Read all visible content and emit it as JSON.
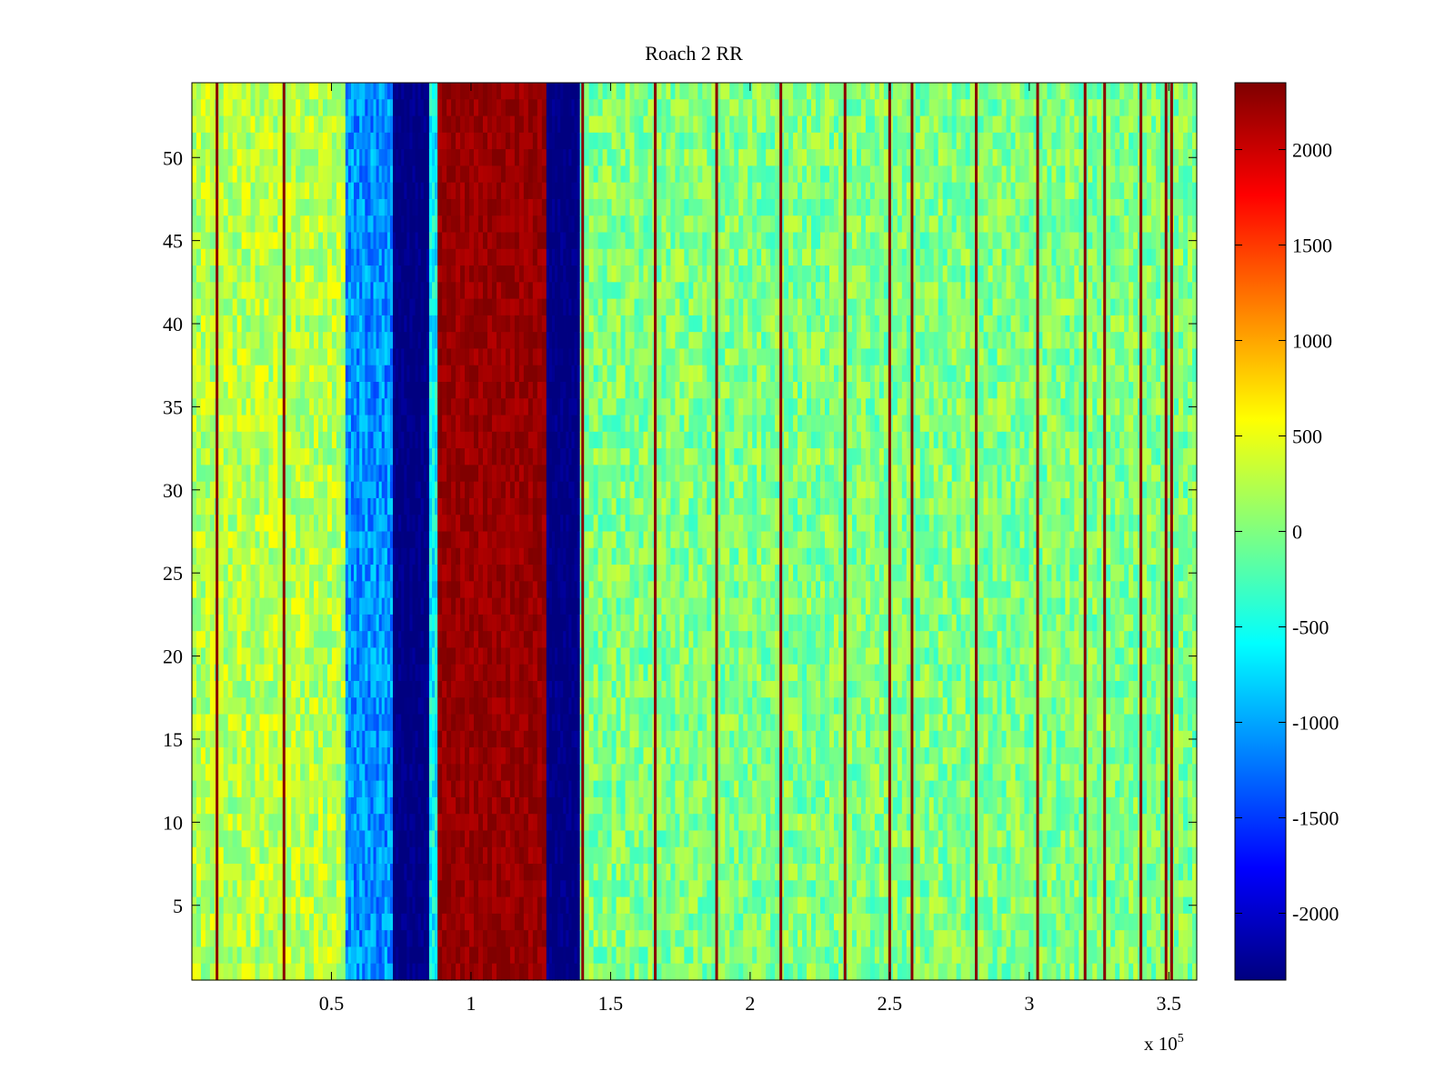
{
  "chart_data": {
    "type": "heatmap",
    "title": "Roach 2 RR",
    "xlabel": "",
    "ylabel": "",
    "x_exponent_label": "x 10",
    "x_exponent_power": "5",
    "xlim": [
      0,
      360000
    ],
    "ylim": [
      0.5,
      54.5
    ],
    "x_ticks": [
      {
        "value": 50000,
        "label": "0.5"
      },
      {
        "value": 100000,
        "label": "1"
      },
      {
        "value": 150000,
        "label": "1.5"
      },
      {
        "value": 200000,
        "label": "2"
      },
      {
        "value": 250000,
        "label": "2.5"
      },
      {
        "value": 300000,
        "label": "3"
      },
      {
        "value": 350000,
        "label": "3.5"
      }
    ],
    "y_ticks": [
      {
        "value": 5,
        "label": "5"
      },
      {
        "value": 10,
        "label": "10"
      },
      {
        "value": 15,
        "label": "15"
      },
      {
        "value": 20,
        "label": "20"
      },
      {
        "value": 25,
        "label": "25"
      },
      {
        "value": 30,
        "label": "30"
      },
      {
        "value": 35,
        "label": "35"
      },
      {
        "value": 40,
        "label": "40"
      },
      {
        "value": 45,
        "label": "45"
      },
      {
        "value": 50,
        "label": "50"
      }
    ],
    "colormap": "jet",
    "clim": [
      -2350,
      2350
    ],
    "colorbar_ticks": [
      {
        "value": 2000,
        "label": "2000"
      },
      {
        "value": 1500,
        "label": "1500"
      },
      {
        "value": 1000,
        "label": "1000"
      },
      {
        "value": 500,
        "label": "500"
      },
      {
        "value": 0,
        "label": "0"
      },
      {
        "value": -500,
        "label": "-500"
      },
      {
        "value": -1000,
        "label": "-1000"
      },
      {
        "value": -1500,
        "label": "-1500"
      },
      {
        "value": -2000,
        "label": "-2000"
      }
    ],
    "grid": false,
    "rows": 54,
    "bands": [
      {
        "x_start": 0,
        "x_end": 55000,
        "value": 250
      },
      {
        "x_start": 55000,
        "x_end": 72000,
        "value": -1100
      },
      {
        "x_start": 72000,
        "x_end": 85000,
        "value": -2350
      },
      {
        "x_start": 85000,
        "x_end": 88000,
        "value": -600
      },
      {
        "x_start": 88000,
        "x_end": 127000,
        "value": 2250
      },
      {
        "x_start": 127000,
        "x_end": 139000,
        "value": -2350
      },
      {
        "x_start": 139000,
        "x_end": 360000,
        "value": 0
      }
    ],
    "stripes_x": [
      9000,
      33000,
      140000,
      166000,
      188000,
      211000,
      234000,
      250000,
      258000,
      281000,
      303000,
      320000,
      327000,
      340000,
      349000,
      351000
    ]
  }
}
